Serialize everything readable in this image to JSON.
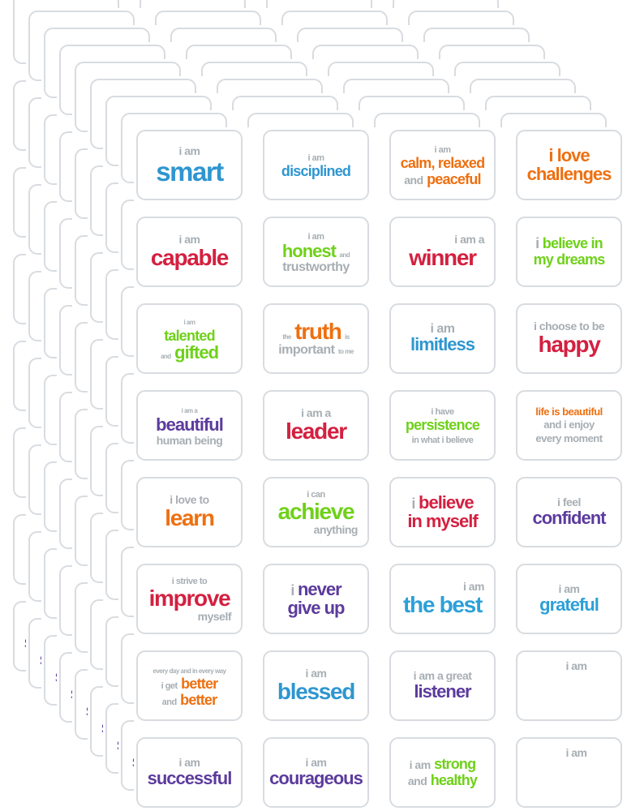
{
  "product": {
    "description_label": "motivational affirmation sticker sheets",
    "sheet_count": 9,
    "grid": {
      "columns": 4,
      "rows": 8
    }
  },
  "colors": {
    "gray": "#a7aeb3",
    "blue": "#2e96d0",
    "cyan": "#2da0d8",
    "red": "#d42040",
    "green": "#6fd11a",
    "orange": "#ee7011",
    "purple": "#5c3b9d",
    "sticker_border": "#d8dce0",
    "background": "#ffffff"
  },
  "stickers": [
    {
      "lines": [
        {
          "segs": [
            {
              "t": "i am",
              "c": "gray",
              "s": "md"
            }
          ]
        },
        {
          "segs": [
            {
              "t": "smart",
              "c": "blue",
              "s": "h1"
            }
          ]
        }
      ]
    },
    {
      "lines": [
        {
          "segs": [
            {
              "t": "i am",
              "c": "gray",
              "s": "sm"
            }
          ]
        },
        {
          "segs": [
            {
              "t": "disciplined",
              "c": "blue",
              "s": "lg"
            }
          ]
        }
      ]
    },
    {
      "lines": [
        {
          "segs": [
            {
              "t": "i am",
              "c": "gray",
              "s": "sm"
            }
          ]
        },
        {
          "segs": [
            {
              "t": "calm, relaxed",
              "c": "orange",
              "s": "lg"
            }
          ]
        },
        {
          "segs": [
            {
              "t": "and",
              "c": "gray",
              "s": "md"
            },
            {
              "t": "peaceful",
              "c": "orange",
              "s": "lg"
            }
          ]
        }
      ]
    },
    {
      "lines": [
        {
          "segs": [
            {
              "t": "i love",
              "c": "orange",
              "s": "xl"
            }
          ]
        },
        {
          "segs": [
            {
              "t": "challenges",
              "c": "orange",
              "s": "xl"
            }
          ]
        }
      ]
    },
    {
      "lines": [
        {
          "segs": [
            {
              "t": "i am",
              "c": "gray",
              "s": "md"
            }
          ]
        },
        {
          "segs": [
            {
              "t": "capable",
              "c": "red",
              "s": "xxl"
            }
          ]
        }
      ]
    },
    {
      "lines": [
        {
          "segs": [
            {
              "t": "i am",
              "c": "gray",
              "s": "sm"
            }
          ]
        },
        {
          "segs": [
            {
              "t": "honest",
              "c": "green",
              "s": "xl"
            },
            {
              "t": "and",
              "c": "gray",
              "s": "xs"
            }
          ]
        },
        {
          "segs": [
            {
              "t": "trustworthy",
              "c": "gray",
              "s": "ml"
            }
          ]
        }
      ]
    },
    {
      "lines": [
        {
          "a": "r",
          "segs": [
            {
              "t": "i am a",
              "c": "gray",
              "s": "md"
            }
          ]
        },
        {
          "segs": [
            {
              "t": "winner",
              "c": "red",
              "s": "xxl"
            }
          ]
        }
      ]
    },
    {
      "lines": [
        {
          "segs": [
            {
              "t": "i",
              "c": "gray",
              "s": "lg"
            },
            {
              "t": "believe in",
              "c": "green",
              "s": "lg"
            }
          ]
        },
        {
          "segs": [
            {
              "t": "my dreams",
              "c": "green",
              "s": "lg"
            }
          ]
        }
      ]
    },
    {
      "lines": [
        {
          "segs": [
            {
              "t": "i am",
              "c": "gray",
              "s": "xs"
            }
          ]
        },
        {
          "segs": [
            {
              "t": "talented",
              "c": "green",
              "s": "lg"
            }
          ]
        },
        {
          "segs": [
            {
              "t": "and",
              "c": "gray",
              "s": "xs"
            },
            {
              "t": "gifted",
              "c": "green",
              "s": "xl"
            }
          ]
        }
      ]
    },
    {
      "lines": [
        {
          "segs": [
            {
              "t": "the",
              "c": "gray",
              "s": "xs"
            },
            {
              "t": "truth",
              "c": "orange",
              "s": "xxl"
            },
            {
              "t": "is",
              "c": "gray",
              "s": "xs"
            }
          ]
        },
        {
          "segs": [
            {
              "t": "important",
              "c": "gray",
              "s": "ml"
            },
            {
              "t": "to me",
              "c": "gray",
              "s": "xs"
            }
          ]
        }
      ]
    },
    {
      "lines": [
        {
          "segs": [
            {
              "t": "i am",
              "c": "gray",
              "s": "ml"
            }
          ]
        },
        {
          "segs": [
            {
              "t": "limitless",
              "c": "blue",
              "s": "xl"
            }
          ]
        }
      ]
    },
    {
      "lines": [
        {
          "segs": [
            {
              "t": "i choose to be",
              "c": "gray",
              "s": "md"
            }
          ]
        },
        {
          "segs": [
            {
              "t": "happy",
              "c": "red",
              "s": "xxl"
            }
          ]
        }
      ]
    },
    {
      "lines": [
        {
          "segs": [
            {
              "t": "i am a",
              "c": "gray",
              "s": "xs"
            }
          ]
        },
        {
          "segs": [
            {
              "t": "beautiful",
              "c": "purple",
              "s": "xl"
            }
          ]
        },
        {
          "segs": [
            {
              "t": "human being",
              "c": "gray",
              "s": "md"
            }
          ]
        }
      ]
    },
    {
      "lines": [
        {
          "segs": [
            {
              "t": "i am a",
              "c": "gray",
              "s": "md"
            }
          ]
        },
        {
          "segs": [
            {
              "t": "leader",
              "c": "red",
              "s": "xxl"
            }
          ]
        }
      ]
    },
    {
      "lines": [
        {
          "segs": [
            {
              "t": "i have",
              "c": "gray",
              "s": "sm"
            }
          ]
        },
        {
          "segs": [
            {
              "t": "persistence",
              "c": "green",
              "s": "lg"
            }
          ]
        },
        {
          "segs": [
            {
              "t": "in what i believe",
              "c": "gray",
              "s": "sm"
            }
          ]
        }
      ]
    },
    {
      "lines": [
        {
          "segs": [
            {
              "t": "life is beautiful",
              "c": "orange",
              "s": "mm"
            }
          ]
        },
        {
          "segs": [
            {
              "t": "and i enjoy",
              "c": "gray",
              "s": "mm"
            }
          ]
        },
        {
          "segs": [
            {
              "t": "every moment",
              "c": "gray",
              "s": "mm"
            }
          ]
        }
      ]
    },
    {
      "lines": [
        {
          "segs": [
            {
              "t": "i love to",
              "c": "gray",
              "s": "md"
            }
          ]
        },
        {
          "segs": [
            {
              "t": "learn",
              "c": "orange",
              "s": "xxl"
            }
          ]
        }
      ]
    },
    {
      "lines": [
        {
          "segs": [
            {
              "t": "i can",
              "c": "gray",
              "s": "sm"
            }
          ]
        },
        {
          "segs": [
            {
              "t": "achieve",
              "c": "green",
              "s": "xxl"
            }
          ]
        },
        {
          "a": "r",
          "segs": [
            {
              "t": "anything",
              "c": "gray",
              "s": "md"
            }
          ]
        }
      ]
    },
    {
      "lines": [
        {
          "segs": [
            {
              "t": "i",
              "c": "gray",
              "s": "lg"
            },
            {
              "t": "believe",
              "c": "red",
              "s": "xl"
            }
          ]
        },
        {
          "segs": [
            {
              "t": "in myself",
              "c": "red",
              "s": "xl"
            }
          ]
        }
      ]
    },
    {
      "lines": [
        {
          "segs": [
            {
              "t": "i feel",
              "c": "gray",
              "s": "md"
            }
          ]
        },
        {
          "segs": [
            {
              "t": "confident",
              "c": "purple",
              "s": "xl"
            }
          ]
        }
      ]
    },
    {
      "lines": [
        {
          "segs": [
            {
              "t": "i strive to",
              "c": "gray",
              "s": "sm"
            }
          ]
        },
        {
          "segs": [
            {
              "t": "improve",
              "c": "red",
              "s": "xxl"
            }
          ]
        },
        {
          "a": "r",
          "segs": [
            {
              "t": "myself",
              "c": "gray",
              "s": "md"
            }
          ]
        }
      ]
    },
    {
      "lines": [
        {
          "segs": [
            {
              "t": "i",
              "c": "gray",
              "s": "lg"
            },
            {
              "t": "never",
              "c": "purple",
              "s": "xl"
            }
          ]
        },
        {
          "segs": [
            {
              "t": "give up",
              "c": "purple",
              "s": "xl"
            }
          ]
        }
      ]
    },
    {
      "lines": [
        {
          "a": "r",
          "segs": [
            {
              "t": "i am",
              "c": "gray",
              "s": "md"
            }
          ]
        },
        {
          "segs": [
            {
              "t": "the best",
              "c": "cyan",
              "s": "xxl"
            }
          ]
        }
      ]
    },
    {
      "lines": [
        {
          "segs": [
            {
              "t": "i am",
              "c": "gray",
              "s": "md"
            }
          ]
        },
        {
          "segs": [
            {
              "t": "grateful",
              "c": "cyan",
              "s": "xl"
            }
          ]
        }
      ]
    },
    {
      "lines": [
        {
          "segs": [
            {
              "t": "every day and in every way",
              "c": "gray",
              "s": "xs"
            }
          ]
        },
        {
          "segs": [
            {
              "t": "i get",
              "c": "gray",
              "s": "sm"
            },
            {
              "t": "better",
              "c": "orange",
              "s": "lg"
            }
          ]
        },
        {
          "segs": [
            {
              "t": "and",
              "c": "gray",
              "s": "sm"
            },
            {
              "t": "better",
              "c": "orange",
              "s": "lg"
            }
          ]
        }
      ]
    },
    {
      "lines": [
        {
          "segs": [
            {
              "t": "i am",
              "c": "gray",
              "s": "md"
            }
          ]
        },
        {
          "segs": [
            {
              "t": "blessed",
              "c": "blue",
              "s": "xxl"
            }
          ]
        }
      ]
    },
    {
      "lines": [
        {
          "segs": [
            {
              "t": "i am a great",
              "c": "gray",
              "s": "md"
            }
          ]
        },
        {
          "segs": [
            {
              "t": "listener",
              "c": "purple",
              "s": "xl"
            }
          ]
        }
      ]
    },
    {
      "va": "top",
      "lines": [
        {
          "segs": [
            {
              "t": "i am",
              "c": "gray",
              "s": "md"
            }
          ]
        }
      ]
    },
    {
      "lines": [
        {
          "segs": [
            {
              "t": "i am",
              "c": "gray",
              "s": "md"
            }
          ]
        },
        {
          "segs": [
            {
              "t": "successful",
              "c": "purple",
              "s": "xl"
            }
          ]
        }
      ]
    },
    {
      "lines": [
        {
          "segs": [
            {
              "t": "i am",
              "c": "gray",
              "s": "md"
            }
          ]
        },
        {
          "segs": [
            {
              "t": "courageous",
              "c": "purple",
              "s": "xl"
            }
          ]
        }
      ]
    },
    {
      "lines": [
        {
          "segs": [
            {
              "t": "i am",
              "c": "gray",
              "s": "md"
            },
            {
              "t": "strong",
              "c": "green",
              "s": "lg"
            }
          ]
        },
        {
          "segs": [
            {
              "t": "and",
              "c": "gray",
              "s": "md"
            },
            {
              "t": "healthy",
              "c": "green",
              "s": "lg"
            }
          ]
        }
      ]
    },
    {
      "va": "top",
      "lines": [
        {
          "segs": [
            {
              "t": "i am",
              "c": "gray",
              "s": "md"
            }
          ]
        }
      ]
    }
  ]
}
